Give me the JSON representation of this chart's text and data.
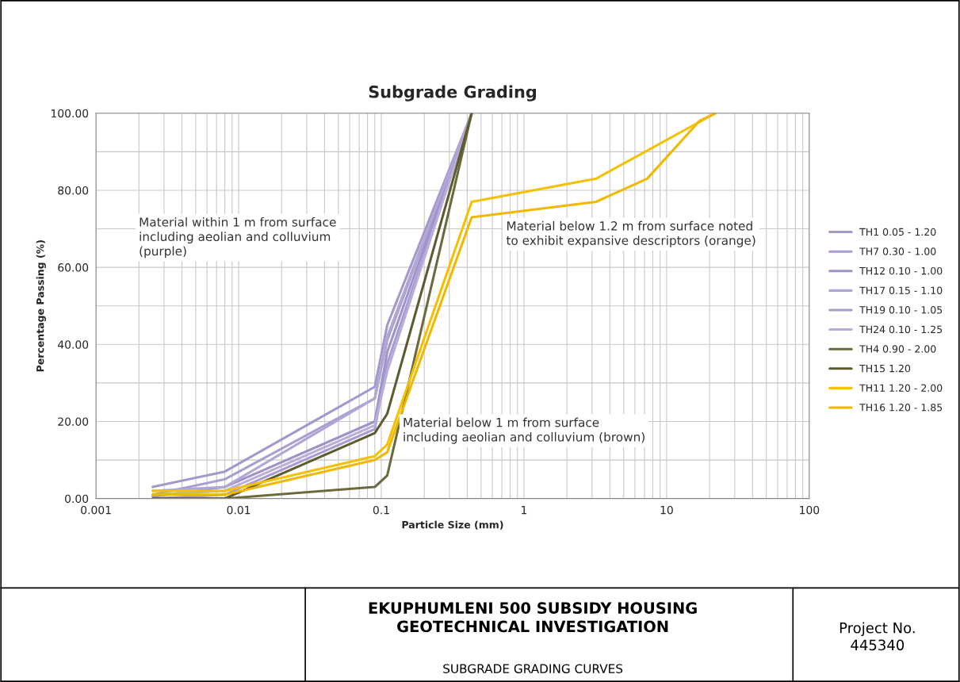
{
  "chart_data": {
    "type": "line",
    "title": "Subgrade Grading",
    "xlabel": "Particle Size (mm)",
    "ylabel": "Percentage Passing (%)",
    "log": "x",
    "xlim": [
      0.001,
      100
    ],
    "ylim": [
      0,
      100
    ],
    "xticks": [
      {
        "value": 0.001,
        "label": "0.001"
      },
      {
        "value": 0.01,
        "label": "0.01"
      },
      {
        "value": 0.1,
        "label": "0.1"
      },
      {
        "value": 1,
        "label": "1"
      },
      {
        "value": 10,
        "label": "10"
      },
      {
        "value": 100,
        "label": "100"
      }
    ],
    "yticks": [
      {
        "value": 0,
        "label": "0.00"
      },
      {
        "value": 10,
        "label": null
      },
      {
        "value": 20,
        "label": "20.00"
      },
      {
        "value": 30,
        "label": null
      },
      {
        "value": 40,
        "label": "40.00"
      },
      {
        "value": 50,
        "label": null
      },
      {
        "value": 60,
        "label": "60.00"
      },
      {
        "value": 70,
        "label": null
      },
      {
        "value": 80,
        "label": "80.00"
      },
      {
        "value": 90,
        "label": null
      },
      {
        "value": 100,
        "label": "100.00"
      }
    ],
    "grid": true,
    "legend": "right",
    "marker": "none",
    "line_style": "solid",
    "x": [
      0.0025,
      0.008,
      0.09,
      0.11,
      0.43
    ],
    "series": [
      {
        "name": "TH1 0.05 - 1.20",
        "color": "#a497cc",
        "values": [
          3,
          7,
          29,
          45,
          100
        ]
      },
      {
        "name": "TH7 0.30 - 1.00",
        "color": "#ab9fd2",
        "values": [
          1,
          5,
          26,
          41,
          100
        ]
      },
      {
        "name": "TH12 0.10 - 1.00",
        "color": "#9f92c8",
        "values": [
          0.5,
          3,
          20,
          38,
          100
        ]
      },
      {
        "name": "TH17 0.15 - 1.10",
        "color": "#b1a6d6",
        "values": [
          2,
          3,
          26,
          42,
          100
        ]
      },
      {
        "name": "TH19 0.10 - 1.05",
        "color": "#a89bd0",
        "values": [
          0,
          1,
          18,
          35,
          100
        ]
      },
      {
        "name": "TH24 0.10 - 1.25",
        "color": "#b8aedb",
        "values": [
          1,
          2,
          19,
          33,
          100
        ]
      },
      {
        "name": "TH4 0.90 - 2.00",
        "color": "#6b6a3c",
        "values": [
          0,
          0,
          3,
          6,
          100
        ]
      },
      {
        "name": "TH15 1.20",
        "color": "#5e5b2e",
        "values": [
          0,
          0,
          17,
          22,
          100
        ]
      },
      {
        "name": "TH11 1.20 - 2.00",
        "color": "#f5c000",
        "x": [
          0.0025,
          0.008,
          0.09,
          0.11,
          0.43,
          3.2,
          22
        ],
        "values": [
          2,
          2,
          11,
          14,
          77,
          83,
          100
        ]
      },
      {
        "name": "TH16 1.20 - 1.85",
        "color": "#f0b800",
        "x": [
          0.0025,
          0.008,
          0.09,
          0.11,
          0.43,
          3.2,
          7.3,
          17,
          22
        ],
        "values": [
          1,
          1,
          10,
          12,
          73,
          77,
          83,
          98,
          100
        ]
      }
    ],
    "annotations": [
      "Material within 1 m from surface\nincluding aeolian and colluvium\n(purple)",
      "Material below 1.2 m from surface noted\nto exhibit expansive descriptors (orange)",
      "Material below 1 m from surface\nincluding aeolian and colluvium (brown)",
      "EKUPHUMLENI 500 SUBSIDY HOUSING\nGEOTECHNICAL INVESTIGATION",
      "SUBGRADE GRADING CURVES",
      "Project No.\n445340"
    ]
  }
}
